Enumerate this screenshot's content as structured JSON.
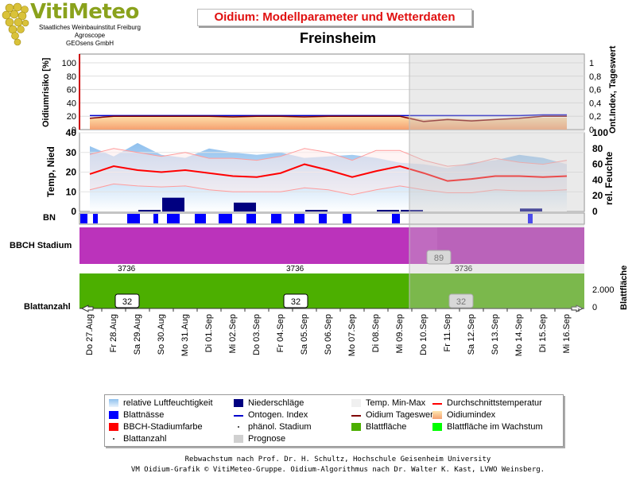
{
  "header": {
    "logo_title": "VitiMeteo",
    "logo_lines": [
      "Staatliches Weinbauinstitut Freiburg",
      "Agroscope",
      "GEOsens GmbH"
    ],
    "title": "Oidium: Modellparameter und Wetterdaten",
    "location": "Freinsheim"
  },
  "footer": {
    "line1": "Rebwachstum nach Prof. Dr. H. Schultz, Hochschule Geisenheim University",
    "line2": "VM Oidium-Grafik © VitiMeteo-Gruppe. Oidium-Algorithmus nach Dr. Walter K. Kast, LVWO Weinsberg."
  },
  "colors": {
    "humidity": "#a8cdf0",
    "rain": "#000080",
    "leafwet": "#0000ff",
    "temp_minmax": "#f2f2f2",
    "temp_avg": "#ff0000",
    "ontogen": "#0000cc",
    "oidium_daily": "#800000",
    "bbch": "#ff0000",
    "bbch_band": "#bb33bb",
    "leaf_area": "#4caf00",
    "leaf_area_growing": "#00ff00",
    "forecast": "#d0d0d0"
  },
  "legend": [
    {
      "label": "relative Luftfeuchtigkeit",
      "icon": "humidity-swatch"
    },
    {
      "label": "Niederschläge",
      "icon": "rain-swatch"
    },
    {
      "label": "Temp. Min-Max",
      "icon": "temp-range-swatch"
    },
    {
      "label": "Durchschnittstemperatur",
      "icon": "avg-temp-line"
    },
    {
      "label": "Blattnässe",
      "icon": "leaf-wetness-swatch"
    },
    {
      "label": "Ontogen. Index",
      "icon": "ontogen-line"
    },
    {
      "label": "Oidium Tageswert",
      "icon": "oidium-daily-line"
    },
    {
      "label": "Oidiumindex",
      "icon": "oidium-index-swatch"
    },
    {
      "label": "BBCH-Stadiumfarbe",
      "icon": "bbch-color-swatch"
    },
    {
      "label": "phänol. Stadium",
      "icon": "phenol-stage-dot"
    },
    {
      "label": "Blattfläche",
      "icon": "leaf-area-swatch"
    },
    {
      "label": "Blattfläche im Wachstum",
      "icon": "leaf-area-growing-swatch"
    },
    {
      "label": "Blattanzahl",
      "icon": "leaf-count-dot"
    },
    {
      "label": "Prognose",
      "icon": "forecast-swatch"
    }
  ],
  "chart_data": {
    "type": "line",
    "x": [
      "Do 27.Aug",
      "Fr 28.Aug",
      "Sa 29.Aug",
      "So 30.Aug",
      "Mo 31.Aug",
      "Di 01.Sep",
      "Mi 02.Sep",
      "Do 03.Sep",
      "Fr 04.Sep",
      "Sa 05.Sep",
      "So 06.Sep",
      "Mo 07.Sep",
      "Di 08.Sep",
      "Mi 09.Sep",
      "Do 10.Sep",
      "Fr 11.Sep",
      "Sa 12.Sep",
      "So 13.Sep",
      "Mo 14.Sep",
      "Di 15.Sep",
      "Mi 16.Sep"
    ],
    "forecast_from": "Mi 09.Sep",
    "panels": {
      "oidium": {
        "ylabel": "Oidiumrisiko [%]",
        "ylabel_right": "Ont.Index, Tageswert",
        "yticks": [
          "0",
          "20",
          "40",
          "60",
          "80",
          "100"
        ],
        "yticks_right": [
          "0",
          "0,2",
          "0,4",
          "0,6",
          "0,8",
          "1"
        ],
        "ylim": [
          0,
          100
        ],
        "ylim_right": [
          0,
          1
        ],
        "oidium_index": [
          16,
          21,
          22,
          22,
          22,
          22,
          22,
          22,
          22,
          22,
          22,
          22,
          22,
          22,
          15,
          17,
          15,
          16,
          17,
          18,
          18
        ],
        "oidium_daily": [
          0.17,
          0.2,
          0.2,
          0.2,
          0.2,
          0.2,
          0.19,
          0.2,
          0.2,
          0.19,
          0.2,
          0.2,
          0.2,
          0.2,
          0.12,
          0.15,
          0.13,
          0.15,
          0.17,
          0.2,
          0.2
        ],
        "ontogen_index": [
          0.21,
          0.21,
          0.21,
          0.21,
          0.21,
          0.21,
          0.21,
          0.21,
          0.21,
          0.21,
          0.21,
          0.21,
          0.21,
          0.21,
          0.21,
          0.21,
          0.21,
          0.21,
          0.21,
          0.22,
          0.22
        ]
      },
      "weather": {
        "ylabel": "Temp, Nied",
        "ylabel_right": "rel. Feuchte",
        "yticks": [
          "0",
          "10",
          "20",
          "30",
          "40"
        ],
        "yticks_right": [
          "0",
          "20",
          "40",
          "60",
          "80",
          "100"
        ],
        "ylim": [
          0,
          40
        ],
        "ylim_right": [
          0,
          100
        ],
        "humidity": [
          83,
          70,
          87,
          72,
          68,
          80,
          75,
          72,
          75,
          68,
          70,
          72,
          68,
          62,
          60,
          55,
          62,
          65,
          72,
          68,
          60
        ],
        "temp_avg": [
          19,
          23,
          21,
          20,
          21,
          19.5,
          18,
          17.5,
          19.5,
          24,
          21,
          17.5,
          20.5,
          23,
          19.5,
          15.5,
          16.5,
          18,
          18,
          17.5,
          18
        ],
        "temp_min": [
          11,
          14,
          13,
          12.5,
          13,
          11,
          10,
          10,
          10,
          12,
          11,
          8.5,
          11,
          13,
          11,
          9.5,
          9.5,
          11,
          10.5,
          10.5,
          11
        ],
        "temp_max": [
          29,
          32,
          30,
          28,
          30,
          27,
          27,
          26,
          28,
          32,
          30,
          26,
          31,
          31,
          26,
          23,
          24,
          27,
          25,
          24,
          26
        ],
        "precipitation": [
          0,
          0,
          0.5,
          7,
          0,
          0,
          4.5,
          0,
          0,
          0.5,
          0,
          0,
          0.5,
          0.5,
          0,
          0,
          0,
          0,
          1.5,
          0,
          0
        ]
      },
      "bn": {
        "label": "BN"
      },
      "bbch": {
        "label": "BBCH Stadium",
        "stage_labels": [
          "3736",
          "3736",
          "3736"
        ],
        "forecast_badge": "89"
      },
      "leaf": {
        "ylabel": "Blattanzahl",
        "ylabel_right": "Blattfläche",
        "yticks_right": [
          "0",
          "2.000"
        ],
        "leaf_count_badges": [
          "32",
          "32",
          "32"
        ]
      }
    }
  }
}
